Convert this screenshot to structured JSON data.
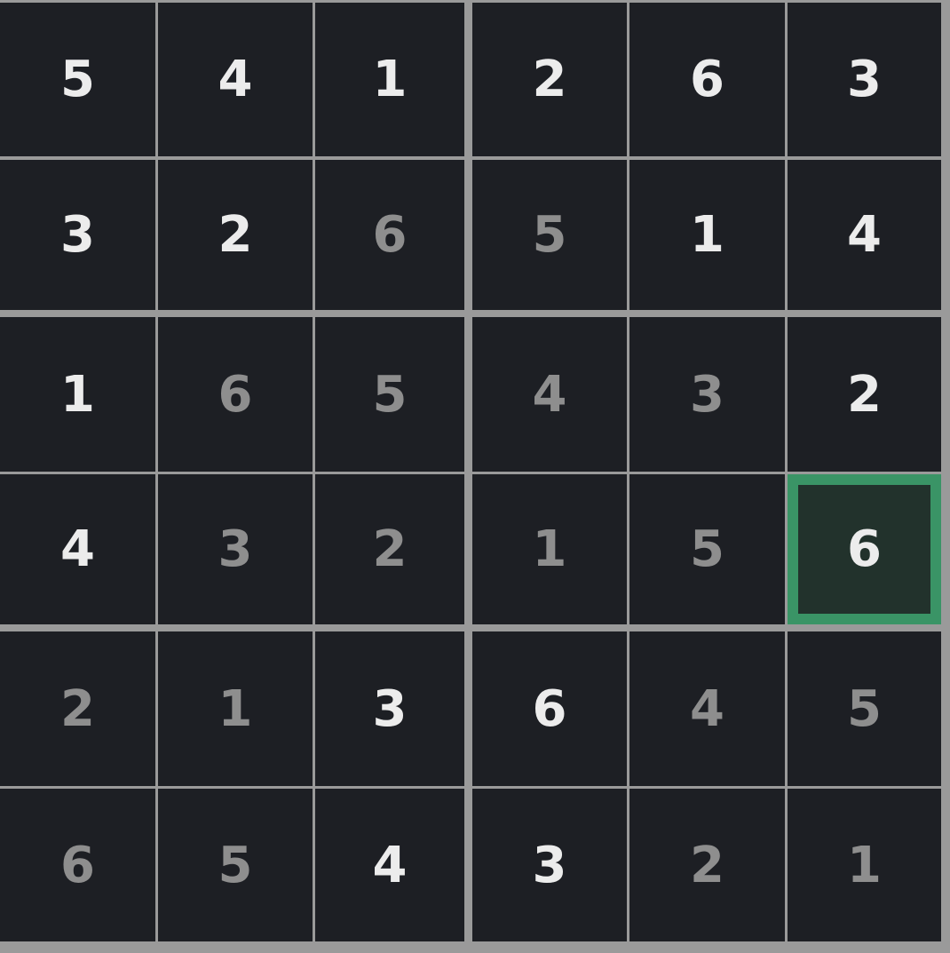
{
  "board": {
    "rows": [
      [
        5,
        4,
        1,
        2,
        6,
        3
      ],
      [
        3,
        2,
        6,
        5,
        1,
        4
      ],
      [
        1,
        6,
        5,
        4,
        3,
        2
      ],
      [
        4,
        3,
        2,
        1,
        5,
        6
      ],
      [
        2,
        1,
        3,
        6,
        4,
        5
      ],
      [
        6,
        5,
        4,
        3,
        2,
        1
      ]
    ],
    "given": [
      [
        true,
        true,
        true,
        true,
        true,
        true
      ],
      [
        true,
        true,
        false,
        false,
        true,
        true
      ],
      [
        true,
        false,
        false,
        false,
        false,
        true
      ],
      [
        true,
        false,
        false,
        false,
        false,
        true
      ],
      [
        false,
        false,
        true,
        true,
        false,
        false
      ],
      [
        false,
        false,
        true,
        true,
        false,
        false
      ]
    ],
    "selected": {
      "row": 3,
      "col": 5
    },
    "colors": {
      "given": "#ececec",
      "entered": "#8e8e8e",
      "selected_border": "#3a9466",
      "cell_bg": "#1d1f24",
      "grid_lines": "#9a9a9a"
    }
  }
}
